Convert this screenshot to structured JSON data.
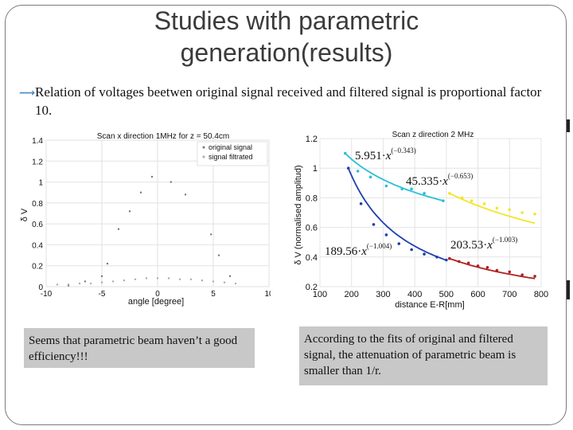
{
  "slide": {
    "title_line1": "Studies with parametric",
    "title_line2": "generation(results)",
    "bullet_text": "Relation of voltages beetwen original signal received and filtered signal is proportional factor 10.",
    "note_left": "Seems that  parametric beam haven’t a good efficiency!!!",
    "note_right": "According to the fits of original and filtered signal, the attenuation of parametric beam is smaller than 1/r.",
    "colors": {
      "accent": "#3a7fc1",
      "note_bg": "#c8c8c8",
      "frame": "#7a7a7a"
    }
  },
  "chart_data": [
    {
      "type": "scatter",
      "title": "Scan  x direction 1MHz for z = 50.4cm",
      "xlabel": "angle [degree]",
      "ylabel": "δ V",
      "xlim": [
        -10,
        10
      ],
      "ylim": [
        0,
        1.4
      ],
      "xticks": [
        "-10",
        "-5",
        "0",
        "5",
        "10"
      ],
      "yticks": [
        "0",
        "0.2",
        "0.4",
        "0.6",
        "0.8",
        "1",
        "1.2",
        "1.4"
      ],
      "grid": true,
      "legend_position": "top-right",
      "series": [
        {
          "name": "original signal",
          "color": "#777777",
          "points": [
            [
              -8,
              0.01
            ],
            [
              -6.5,
              0.05
            ],
            [
              -5,
              0.1
            ],
            [
              -4.5,
              0.22
            ],
            [
              -3.5,
              0.55
            ],
            [
              -2.5,
              0.72
            ],
            [
              -1.5,
              0.9
            ],
            [
              -0.5,
              1.05
            ],
            [
              1.2,
              1.0
            ],
            [
              2.5,
              0.88
            ],
            [
              4.8,
              0.5
            ],
            [
              5.5,
              0.3
            ],
            [
              6.5,
              0.1
            ]
          ]
        },
        {
          "name": "signal filtrated",
          "color": "#aaaaaa",
          "points": [
            [
              -9,
              0.02
            ],
            [
              -8,
              0.02
            ],
            [
              -7,
              0.03
            ],
            [
              -6,
              0.03
            ],
            [
              -5,
              0.04
            ],
            [
              -4,
              0.05
            ],
            [
              -3,
              0.06
            ],
            [
              -2,
              0.07
            ],
            [
              -1,
              0.08
            ],
            [
              0,
              0.08
            ],
            [
              1,
              0.08
            ],
            [
              2,
              0.07
            ],
            [
              3,
              0.07
            ],
            [
              4,
              0.06
            ],
            [
              5,
              0.05
            ],
            [
              6,
              0.04
            ],
            [
              7,
              0.03
            ]
          ]
        }
      ]
    },
    {
      "type": "scatter",
      "title": "Scan z direction 2 MHz",
      "xlabel": "distance E-R[mm]",
      "ylabel": "δ V (normalised amplitud)",
      "xlim": [
        100,
        800
      ],
      "ylim": [
        0.2,
        1.2
      ],
      "xticks": [
        "100",
        "200",
        "300",
        "400",
        "500",
        "600",
        "700",
        "800"
      ],
      "yticks": [
        "0.2",
        "0.4",
        "0.6",
        "0.8",
        "1",
        "1.2"
      ],
      "grid": true,
      "series": [
        {
          "color": "#29c0d8",
          "fit": "5.951·x^(−0.343)",
          "fit_a": 5.951,
          "fit_b": -0.343,
          "points": [
            [
              180,
              1.1
            ],
            [
              220,
              0.98
            ],
            [
              260,
              0.94
            ],
            [
              310,
              0.88
            ],
            [
              360,
              0.86
            ],
            [
              390,
              0.86
            ],
            [
              430,
              0.83
            ],
            [
              490,
              0.78
            ]
          ]
        },
        {
          "color": "#f2e628",
          "fit": "45.335·x^(−0.653)",
          "fit_a": 45.335,
          "fit_b": -0.653,
          "points": [
            [
              510,
              0.83
            ],
            [
              550,
              0.8
            ],
            [
              580,
              0.78
            ],
            [
              620,
              0.76
            ],
            [
              660,
              0.73
            ],
            [
              700,
              0.72
            ],
            [
              740,
              0.7
            ],
            [
              780,
              0.69
            ]
          ]
        },
        {
          "color": "#1f3fae",
          "fit": "189.56·x^(−1.004)",
          "fit_a": 189.56,
          "fit_b": -1.004,
          "points": [
            [
              190,
              1.0
            ],
            [
              230,
              0.76
            ],
            [
              270,
              0.62
            ],
            [
              310,
              0.55
            ],
            [
              350,
              0.49
            ],
            [
              390,
              0.45
            ],
            [
              430,
              0.42
            ],
            [
              470,
              0.4
            ],
            [
              500,
              0.38
            ]
          ]
        },
        {
          "color": "#b02020",
          "fit": "203.53·x^(−1.003)",
          "fit_a": 203.53,
          "fit_b": -1.003,
          "points": [
            [
              510,
              0.39
            ],
            [
              540,
              0.37
            ],
            [
              570,
              0.36
            ],
            [
              600,
              0.34
            ],
            [
              630,
              0.33
            ],
            [
              660,
              0.31
            ],
            [
              700,
              0.3
            ],
            [
              740,
              0.28
            ],
            [
              780,
              0.27
            ]
          ]
        }
      ]
    }
  ]
}
